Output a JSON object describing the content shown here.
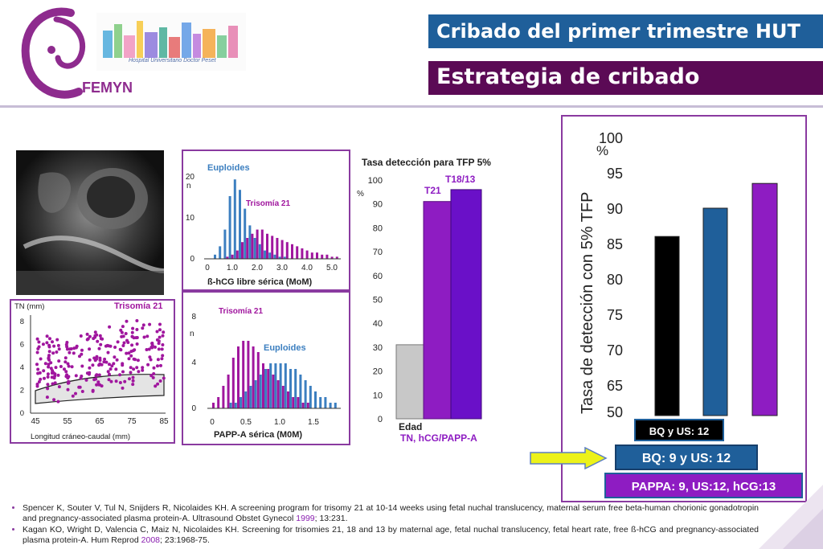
{
  "header": {
    "title1": "Cribado del primer trimestre HUT",
    "title2": "Estrategia de cribado",
    "logo_text": "FEMYN",
    "banner_text": "Hospital Universitario Doctor Peset"
  },
  "colors": {
    "blue": "#1f5f9a",
    "purple_dark": "#5b0a55",
    "purple": "#8e1cc2",
    "magenta": "#a0169e",
    "steel": "#3c7fc0"
  },
  "scatter_panel": {
    "ylabel": "TN (mm)",
    "series_label": "Trisomía 21",
    "xlabel": "Longitud cráneo-caudal (mm)",
    "xticks": [
      "45",
      "55",
      "65",
      "75",
      "85"
    ],
    "yticks": [
      "0",
      "2",
      "4",
      "6",
      "8"
    ]
  },
  "hcg_panel": {
    "label_euploid": "Euploides",
    "label_t21": "Trisomía 21",
    "ylabel": "n",
    "yticks": [
      "0",
      "10",
      "20"
    ],
    "xticks": [
      "0",
      "1.0",
      "2.0",
      "3.0",
      "4.0",
      "5.0"
    ],
    "xlabel": "ß-hCG libre sérica (MoM)"
  },
  "pappa_panel": {
    "label_euploid": "Euploides",
    "label_t21": "Trisomía 21",
    "ylabel": "n",
    "yticks": [
      "0",
      "4",
      "8"
    ],
    "xticks": [
      "0",
      "0.5",
      "1.0",
      "1.5"
    ],
    "xlabel": "PAPP-A sérica (M0M)"
  },
  "middle_chart": {
    "title": "Tasa detección para TFP 5%",
    "unit": "%",
    "yticks": [
      "0",
      "10",
      "20",
      "30",
      "40",
      "50",
      "60",
      "70",
      "80",
      "90",
      "100"
    ],
    "label_edad": "Edad",
    "label_combo": "TN, hCG/PAPP-A",
    "label_t21": "T21",
    "label_t1813": "T18/13"
  },
  "right_chart": {
    "ylabel": "Tasa de detección con 5% TFP",
    "unit": "%",
    "yticks": [
      "50",
      "65",
      "70",
      "75",
      "80",
      "85",
      "90",
      "95",
      "100"
    ],
    "legend": [
      "BQ y US: 12",
      "BQ: 9 y US: 12",
      "PAPPA: 9, US:12, hCG:13"
    ]
  },
  "chart_data": [
    {
      "type": "bar",
      "title": "Tasa detección para TFP 5%",
      "ylim": [
        0,
        100
      ],
      "series": [
        {
          "name": "Edad",
          "values": [
            31
          ]
        },
        {
          "name": "T21",
          "values": [
            91
          ]
        },
        {
          "name": "T18/13",
          "values": [
            96
          ]
        }
      ]
    },
    {
      "type": "bar",
      "ylabel": "Tasa de detección con 5% TFP",
      "ylim": [
        50,
        100
      ],
      "categories": [
        "BQ y US: 12",
        "BQ: 9 y US: 12",
        "PAPPA: 9, US:12, hCG:13"
      ],
      "values": [
        86,
        90,
        93.5
      ]
    }
  ],
  "references": [
    {
      "text": "Spencer K, Souter V, Tul N, Snijders R, Nicolaides KH. A screening program for trisomy 21 at 10-14 weeks using fetal nuchal translucency, maternal serum free beta-human chorionic gonadotropin and pregnancy-associated plasma protein-A. Ultrasound Obstet Gynecol ",
      "year": "1999",
      "tail": "; 13:231."
    },
    {
      "text": "Kagan KO, Wright D, Valencia C, Maiz N, Nicolaides KH. Screening for trisomies 21, 18 and 13 by maternal age, fetal nuchal translucency, fetal heart rate, free ß-hCG and pregnancy-associated plasma protein-A. Hum Reprod ",
      "year": "2008",
      "tail": "; 23:1968-75."
    }
  ]
}
